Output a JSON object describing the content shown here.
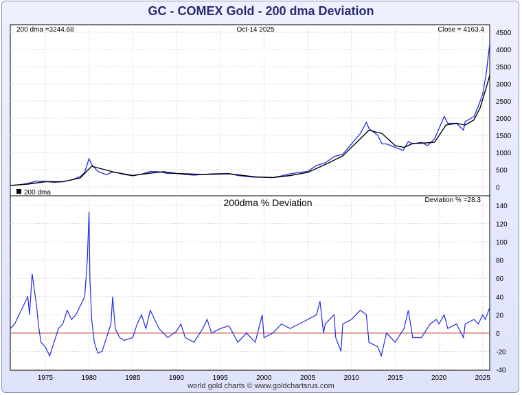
{
  "title": "GC - COMEX Gold - 200 dma Deviation",
  "footer": "world gold charts © www.goldchartsrus.com",
  "colors": {
    "series": "#1f2ae6",
    "dma": "#000000",
    "zero_line": "#c0392b",
    "grid": "#c8c8c8",
    "frame_bg": "#e4e7fc"
  },
  "chart_data": [
    {
      "type": "line",
      "top_left_text": "200 dma =3244.68",
      "top_center_text": "Oct-14  2025",
      "top_right_text": "Close = 4163.4",
      "legend": [
        "200 dma"
      ],
      "ylim": [
        0,
        4500
      ],
      "yticks": [
        0,
        500,
        1000,
        1500,
        2000,
        2500,
        3000,
        3500,
        4000,
        4500
      ],
      "xlim": [
        1971,
        2025.8
      ],
      "series": [
        {
          "name": "Close",
          "x": [
            1971,
            1972,
            1973,
            1974,
            1975,
            1976,
            1977,
            1978,
            1979,
            1979.5,
            1980.0,
            1980.3,
            1981,
            1982,
            1982.5,
            1983,
            1984,
            1985,
            1986,
            1987,
            1988,
            1989,
            1990,
            1991,
            1992,
            1993,
            1994,
            1995,
            1996,
            1997,
            1998,
            1999,
            2000,
            2001,
            2002,
            2003,
            2004,
            2005,
            2006,
            2007,
            2008,
            2009,
            2010,
            2011,
            2011.7,
            2012,
            2013,
            2013.5,
            2014,
            2015,
            2015.9,
            2016.5,
            2017,
            2018,
            2018.7,
            2019.5,
            2020.6,
            2021,
            2022,
            2022.8,
            2023,
            2024,
            2024.5,
            2025,
            2025.4,
            2025.8
          ],
          "y": [
            40,
            60,
            100,
            170,
            160,
            130,
            150,
            200,
            300,
            420,
            820,
            650,
            450,
            350,
            420,
            430,
            360,
            320,
            370,
            450,
            440,
            390,
            390,
            360,
            340,
            360,
            380,
            385,
            390,
            330,
            300,
            280,
            280,
            270,
            320,
            380,
            420,
            450,
            620,
            700,
            880,
            950,
            1250,
            1550,
            1880,
            1700,
            1500,
            1250,
            1250,
            1150,
            1060,
            1320,
            1250,
            1300,
            1200,
            1400,
            2050,
            1850,
            1850,
            1650,
            1900,
            2050,
            2350,
            2700,
            3300,
            4160
          ]
        },
        {
          "name": "200 dma",
          "x": [
            1971,
            1973,
            1975,
            1977,
            1979,
            1980.3,
            1981.5,
            1983,
            1985,
            1987,
            1988.5,
            1990,
            1993,
            1996,
            1999,
            2001,
            2003,
            2005,
            2007,
            2009,
            2011,
            2012,
            2013.5,
            2015,
            2016,
            2017,
            2018.5,
            2019.5,
            2020.8,
            2022,
            2023,
            2024,
            2024.7,
            2025.3,
            2025.8
          ],
          "y": [
            40,
            80,
            150,
            150,
            260,
            600,
            520,
            420,
            330,
            400,
            440,
            390,
            360,
            380,
            290,
            270,
            330,
            420,
            650,
            900,
            1400,
            1650,
            1550,
            1200,
            1150,
            1260,
            1280,
            1300,
            1800,
            1850,
            1800,
            1950,
            2300,
            2800,
            3245
          ]
        }
      ]
    },
    {
      "type": "line",
      "title": "200dma  %  Deviation",
      "top_right_text": "Deviation % =28.3",
      "ylim": [
        -40,
        140
      ],
      "yticks": [
        -40,
        -20,
        0,
        20,
        40,
        60,
        80,
        100,
        120,
        140
      ],
      "xticks": [
        1975,
        1980,
        1985,
        1990,
        1995,
        2000,
        2005,
        2010,
        2015,
        2020,
        2025
      ],
      "xlim": [
        1971,
        2025.8
      ],
      "reference_line": 0,
      "series": [
        {
          "name": "Deviation %",
          "x": [
            1971,
            1971.5,
            1972,
            1972.5,
            1973,
            1973.2,
            1973.5,
            1974,
            1974.2,
            1974.5,
            1975,
            1975.5,
            1976,
            1976.5,
            1977,
            1977.5,
            1978,
            1978.5,
            1979,
            1979.5,
            1979.8,
            1980.0,
            1980.1,
            1980.3,
            1980.6,
            1981,
            1981.5,
            1982,
            1982.5,
            1982.7,
            1983,
            1983.5,
            1984,
            1985,
            1985.5,
            1986,
            1986.5,
            1987,
            1987.5,
            1988,
            1989,
            1990,
            1990.5,
            1991,
            1992,
            1993,
            1993.5,
            1994,
            1995,
            1996,
            1997,
            1998,
            1999,
            1999.8,
            2000,
            2001,
            2002,
            2003,
            2004,
            2005,
            2006,
            2006.4,
            2006.8,
            2007,
            2008,
            2008.2,
            2008.8,
            2009,
            2010,
            2011,
            2011.7,
            2012,
            2013,
            2013.4,
            2014,
            2015,
            2016,
            2016.5,
            2017,
            2018,
            2019,
            2019.7,
            2020,
            2020.6,
            2021,
            2022,
            2022.8,
            2023,
            2024,
            2024.5,
            2025,
            2025.3,
            2025.8
          ],
          "y": [
            5,
            10,
            20,
            30,
            40,
            20,
            65,
            30,
            10,
            -10,
            -15,
            -25,
            -10,
            5,
            10,
            25,
            15,
            20,
            30,
            40,
            80,
            133,
            60,
            15,
            -10,
            -22,
            -20,
            -5,
            10,
            40,
            5,
            -5,
            -8,
            -5,
            10,
            20,
            5,
            25,
            15,
            5,
            -5,
            2,
            10,
            -5,
            -10,
            5,
            15,
            0,
            5,
            8,
            -10,
            0,
            -10,
            20,
            -5,
            0,
            10,
            5,
            10,
            15,
            20,
            35,
            0,
            10,
            20,
            -5,
            -20,
            10,
            15,
            25,
            20,
            -10,
            -15,
            -25,
            0,
            -10,
            5,
            25,
            -5,
            -5,
            10,
            15,
            10,
            20,
            5,
            10,
            -5,
            10,
            15,
            10,
            20,
            15,
            28
          ]
        }
      ]
    }
  ]
}
